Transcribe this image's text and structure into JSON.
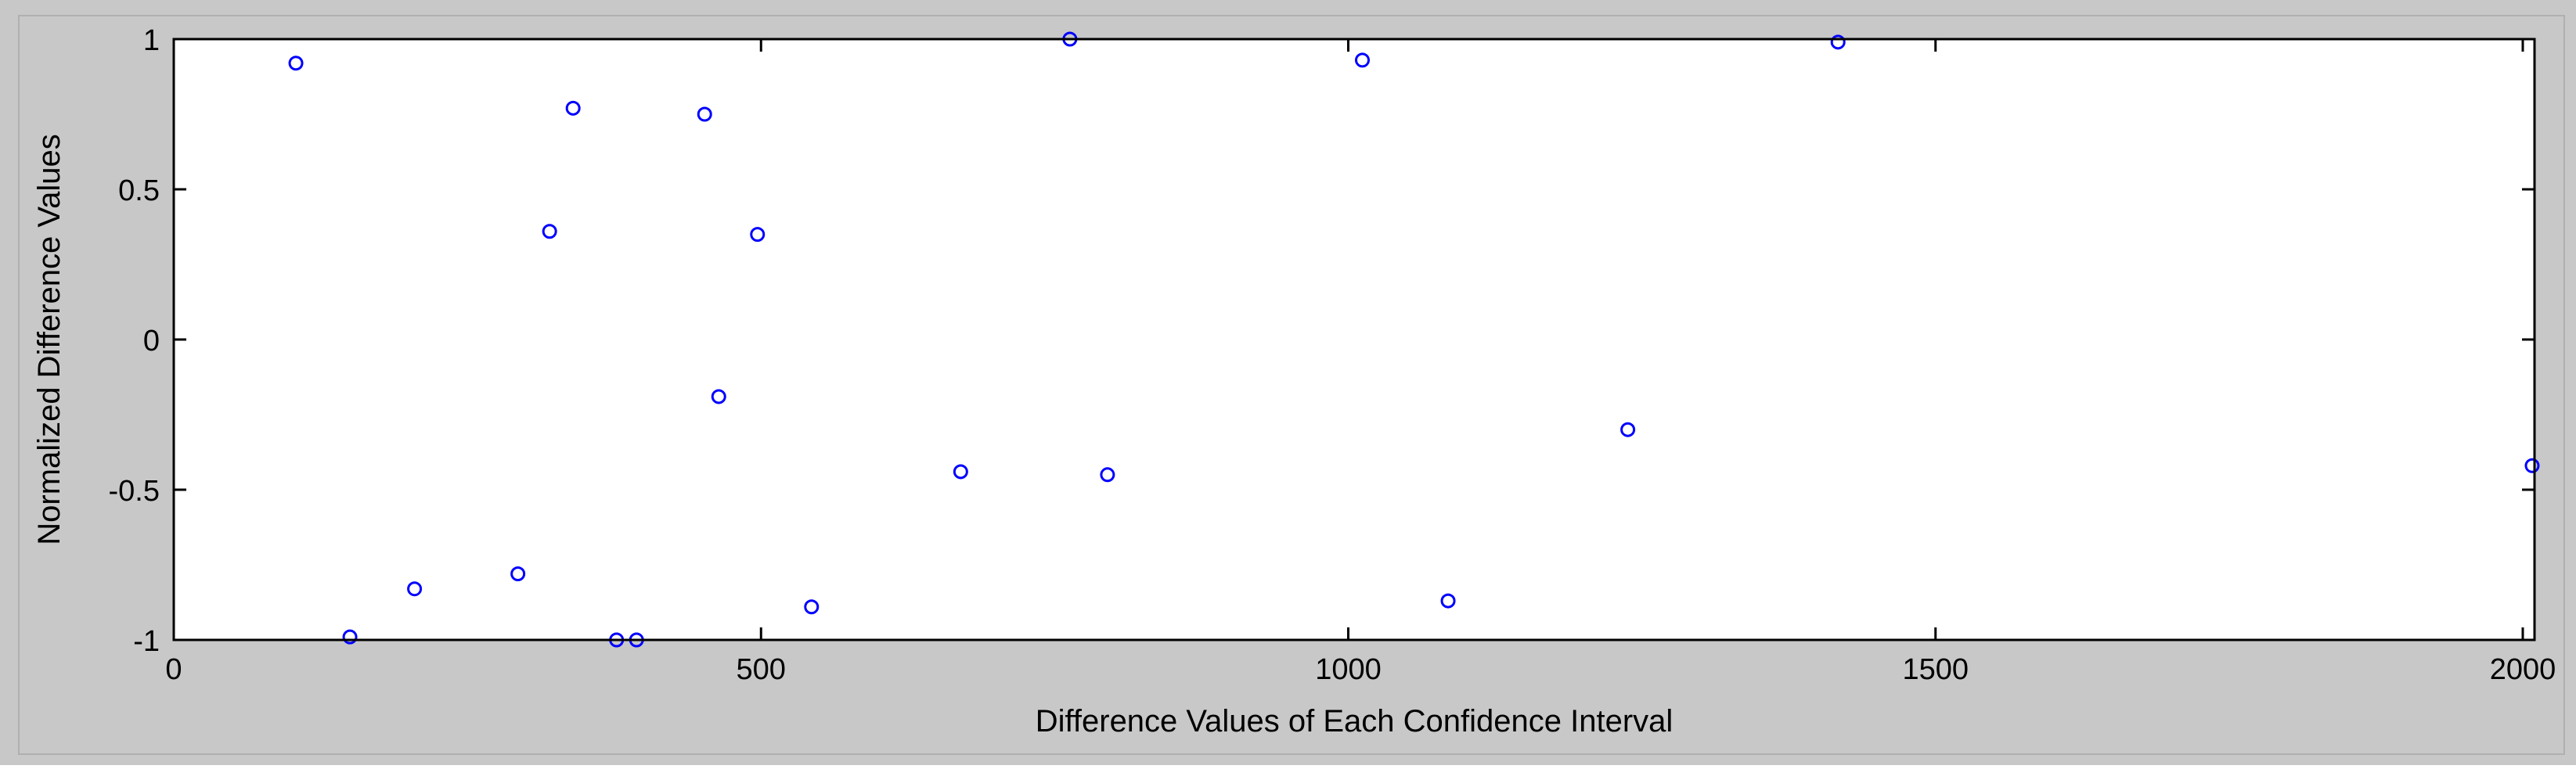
{
  "chart_data": {
    "type": "scatter",
    "title": "",
    "xlabel": "Difference Values of Each Confidence Interval",
    "ylabel": "Normalized Difference Values",
    "xlim": [
      0,
      2010
    ],
    "ylim": [
      -1,
      1
    ],
    "xticks": [
      0,
      500,
      1000,
      1500,
      2000
    ],
    "xtick_labels": [
      "0",
      "500",
      "1000",
      "1500",
      "2000"
    ],
    "yticks": [
      1,
      0.5,
      0,
      -0.5,
      -1
    ],
    "ytick_labels": [
      "1",
      "0.5",
      "0",
      "-0.5",
      "-1"
    ],
    "grid": false,
    "legend": "none",
    "colors": {
      "figure_background": "#c8c8c8",
      "axes_background": "#ffffff",
      "axes_line": "#000000",
      "marker": "#0000ff",
      "text": "#000000"
    },
    "marker": "open-circle",
    "series": [
      {
        "points": [
          {
            "x": 104,
            "y": 0.92
          },
          {
            "x": 150,
            "y": -0.99
          },
          {
            "x": 205,
            "y": -0.83
          },
          {
            "x": 293,
            "y": -0.78
          },
          {
            "x": 320,
            "y": 0.36
          },
          {
            "x": 340,
            "y": 0.77
          },
          {
            "x": 377,
            "y": -1.0
          },
          {
            "x": 394,
            "y": -1.0
          },
          {
            "x": 452,
            "y": 0.75
          },
          {
            "x": 464,
            "y": -0.19
          },
          {
            "x": 497,
            "y": 0.35
          },
          {
            "x": 543,
            "y": -0.89
          },
          {
            "x": 670,
            "y": -0.44
          },
          {
            "x": 763,
            "y": 1.0
          },
          {
            "x": 795,
            "y": -0.45
          },
          {
            "x": 1012,
            "y": 0.93
          },
          {
            "x": 1085,
            "y": -0.87
          },
          {
            "x": 1238,
            "y": -0.3
          },
          {
            "x": 1417,
            "y": 0.99
          },
          {
            "x": 2008,
            "y": -0.42
          }
        ]
      }
    ]
  }
}
